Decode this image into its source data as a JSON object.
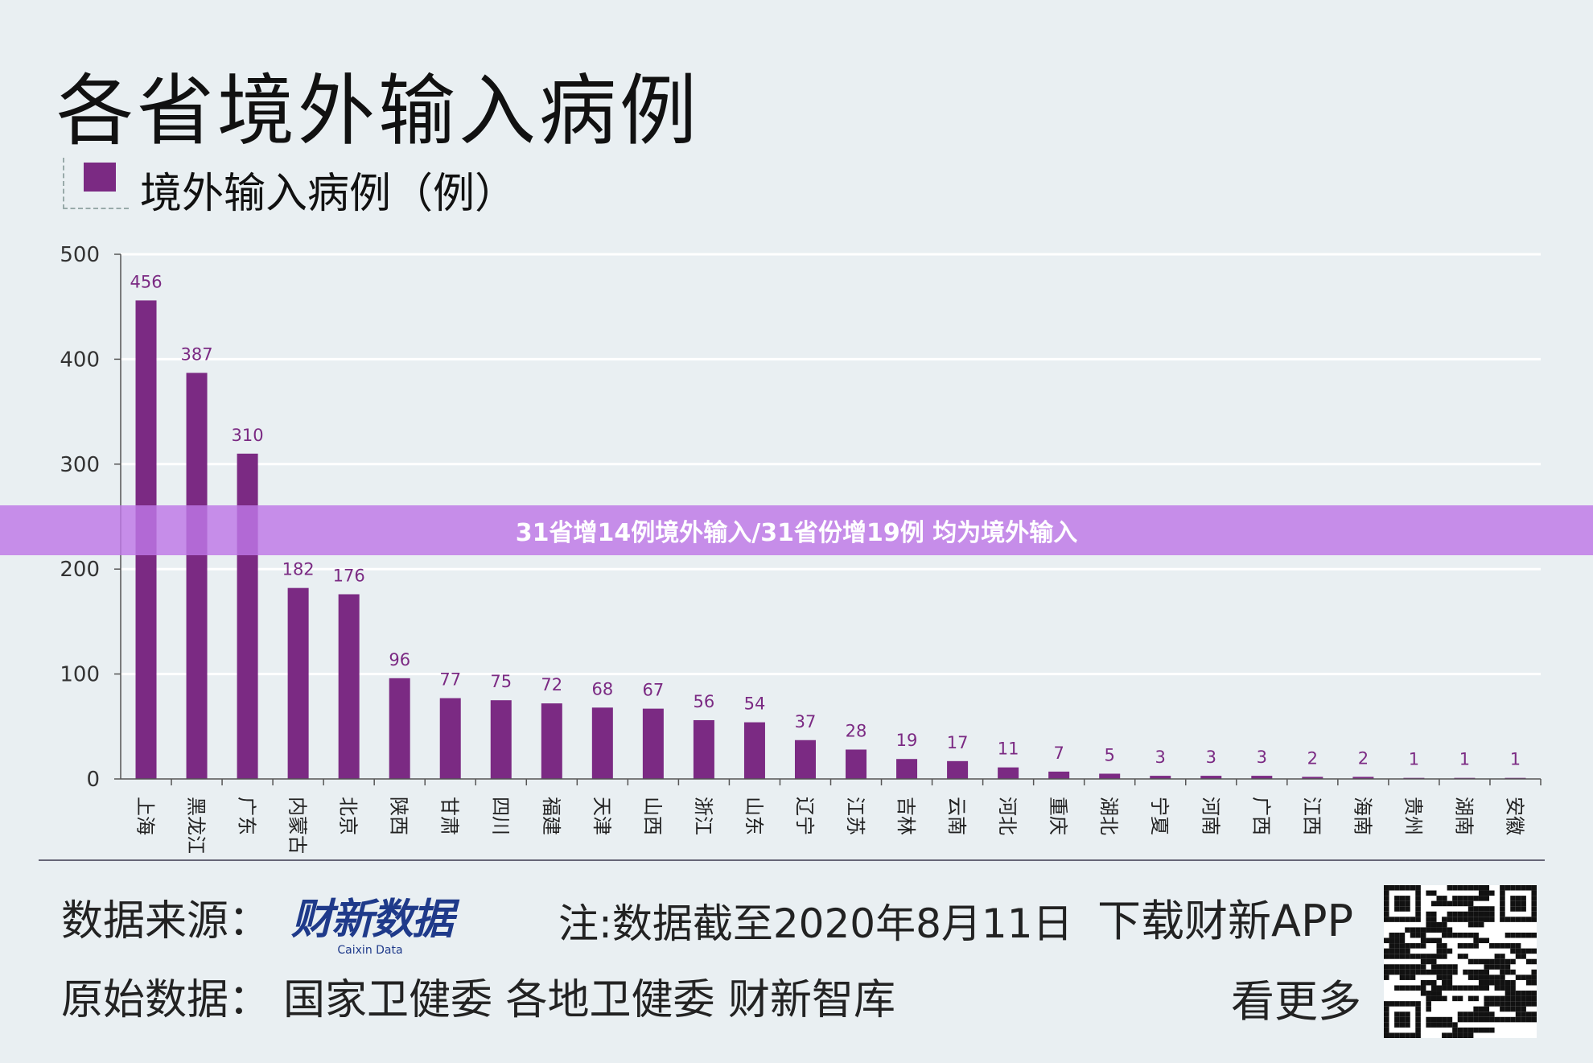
{
  "chart_data": {
    "type": "bar",
    "title": "各省境外输入病例",
    "series": [
      {
        "name": "境外输入病例（例）",
        "values": [
          456,
          387,
          310,
          182,
          176,
          96,
          77,
          75,
          72,
          68,
          67,
          56,
          54,
          37,
          28,
          19,
          17,
          11,
          7,
          5,
          3,
          3,
          3,
          2,
          2,
          1,
          1,
          1
        ]
      }
    ],
    "categories": [
      "上海",
      "黑龙江",
      "广东",
      "内蒙古",
      "北京",
      "陕西",
      "甘肃",
      "四川",
      "福建",
      "天津",
      "山西",
      "浙江",
      "山东",
      "辽宁",
      "江苏",
      "吉林",
      "云南",
      "河北",
      "重庆",
      "湖北",
      "宁夏",
      "河南",
      "广西",
      "江西",
      "海南",
      "贵州",
      "湖南",
      "安徽"
    ],
    "ylim": [
      0,
      500
    ],
    "yticks": [
      0,
      100,
      200,
      300,
      400,
      500
    ],
    "xlabel": "",
    "ylabel": "",
    "grid": true,
    "legend": "top-left",
    "bar_color": "#7b2a83",
    "label_color": "#7b2a83"
  },
  "footer": {
    "source_label": "数据来源：",
    "logo_text": "财新数据",
    "logo_sub": "Caixin Data",
    "note": "注:数据截至2020年8月11日",
    "download": "下载财新APP",
    "see_more": "看更多",
    "original_label": "原始数据：",
    "original_value": "国家卫健委 各地卫健委 财新智库"
  },
  "banner": {
    "text": "31省增14例境外输入/31省份增19例 均为境外输入"
  }
}
